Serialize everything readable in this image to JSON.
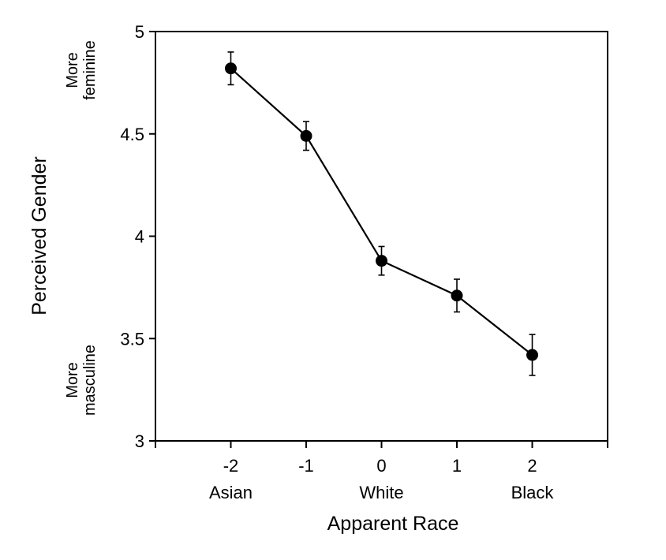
{
  "chart_data": {
    "type": "line",
    "xlabel": "Apparent Race",
    "ylabel": "Perceived Gender",
    "xlim": [
      -3,
      3
    ],
    "ylim": [
      3,
      5
    ],
    "x_ticks": [
      -2,
      -1,
      0,
      1,
      2
    ],
    "x_tick_labels": [
      "-2",
      "-1",
      "0",
      "1",
      "2"
    ],
    "y_ticks": [
      3,
      3.5,
      4,
      4.5,
      5
    ],
    "y_tick_labels": [
      "3",
      "3.5",
      "4",
      "4.5",
      "5"
    ],
    "category_labels": [
      {
        "x": -2,
        "label": "Asian"
      },
      {
        "x": 0,
        "label": "White"
      },
      {
        "x": 2,
        "label": "Black"
      }
    ],
    "y_annotations": {
      "top": [
        "More",
        "feminine"
      ],
      "bottom": [
        "More",
        "masculine"
      ]
    },
    "grid": false,
    "series": [
      {
        "x": [
          -2,
          -1,
          0,
          1,
          2
        ],
        "y": [
          4.82,
          4.49,
          3.88,
          3.71,
          3.42
        ],
        "error": [
          0.08,
          0.07,
          0.07,
          0.08,
          0.1
        ]
      }
    ]
  }
}
